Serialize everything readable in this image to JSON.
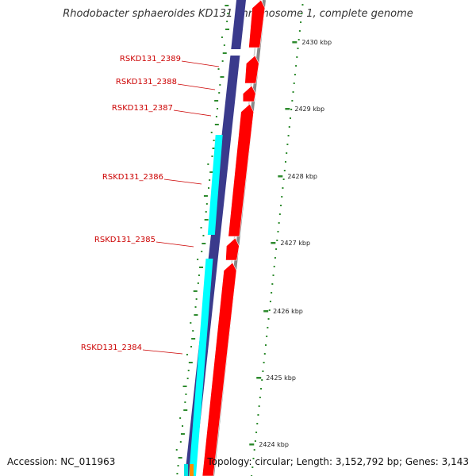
{
  "title": "Rhodobacter sphaeroides KD131 chromosome 1, complete genome",
  "footer": {
    "accession": "Accession: NC_011963",
    "summary": "Topology: circular; Length: 3,152,792 bp; Genes: 3,143"
  },
  "colors": {
    "forward_cds": "#ff0000",
    "reverse_cds": "#3a3a8c",
    "gene_outline": "#00ffff",
    "backbone": "#888888",
    "gc_dots": "#2e8b2e",
    "label": "#cc0000"
  },
  "scale_ticks": [
    {
      "label": "2430 kbp",
      "kbp": 2430
    },
    {
      "label": "2429 kbp",
      "kbp": 2429
    },
    {
      "label": "2428 kbp",
      "kbp": 2428
    },
    {
      "label": "2427 kbp",
      "kbp": 2427
    },
    {
      "label": "2426 kbp",
      "kbp": 2426
    },
    {
      "label": "2425 kbp",
      "kbp": 2425
    },
    {
      "label": "2424 kbp",
      "kbp": 2424
    }
  ],
  "genes": [
    {
      "name": "RSKD131_2389"
    },
    {
      "name": "RSKD131_2388"
    },
    {
      "name": "RSKD131_2387"
    },
    {
      "name": "RSKD131_2386"
    },
    {
      "name": "RSKD131_2385"
    },
    {
      "name": "RSKD131_2384"
    }
  ]
}
